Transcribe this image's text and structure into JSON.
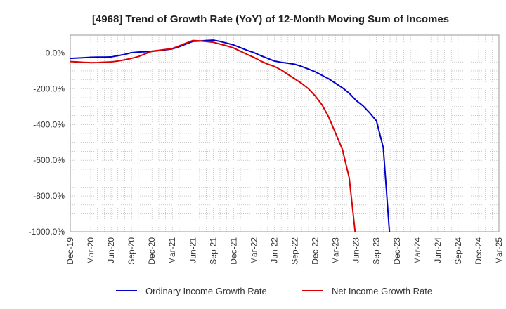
{
  "chart_data": {
    "type": "line",
    "title": "[4968]  Trend of Growth Rate (YoY) of 12-Month Moving Sum of Incomes",
    "xlabel": "",
    "ylabel": "",
    "ylim": [
      -1000,
      100
    ],
    "y_ticks": [
      {
        "value": 0,
        "label": "0.0%"
      },
      {
        "value": -200,
        "label": "-200.0%"
      },
      {
        "value": -400,
        "label": "-400.0%"
      },
      {
        "value": -600,
        "label": "-600.0%"
      },
      {
        "value": -800,
        "label": "-800.0%"
      },
      {
        "value": -1000,
        "label": "-1000.0%"
      }
    ],
    "x": [
      "Dec-19",
      "Jan-20",
      "Feb-20",
      "Mar-20",
      "Apr-20",
      "May-20",
      "Jun-20",
      "Jul-20",
      "Aug-20",
      "Sep-20",
      "Oct-20",
      "Nov-20",
      "Dec-20",
      "Jan-21",
      "Feb-21",
      "Mar-21",
      "Apr-21",
      "May-21",
      "Jun-21",
      "Jul-21",
      "Aug-21",
      "Sep-21",
      "Oct-21",
      "Nov-21",
      "Dec-21",
      "Jan-22",
      "Feb-22",
      "Mar-22",
      "Apr-22",
      "May-22",
      "Jun-22",
      "Jul-22",
      "Aug-22",
      "Sep-22",
      "Oct-22",
      "Nov-22",
      "Dec-22",
      "Jan-23",
      "Feb-23",
      "Mar-23",
      "Apr-23",
      "May-23",
      "Jun-23",
      "Jul-23",
      "Aug-23",
      "Sep-23",
      "Oct-23",
      "Nov-23",
      "Dec-23",
      "Jan-24",
      "Feb-24",
      "Mar-24",
      "Apr-24",
      "May-24",
      "Jun-24",
      "Jul-24",
      "Aug-24",
      "Sep-24",
      "Oct-24",
      "Nov-24",
      "Dec-24",
      "Jan-25",
      "Feb-25",
      "Mar-25"
    ],
    "x_tick_labels": [
      "Dec-19",
      "Mar-20",
      "Jun-20",
      "Sep-20",
      "Dec-20",
      "Mar-21",
      "Jun-21",
      "Sep-21",
      "Dec-21",
      "Mar-22",
      "Jun-22",
      "Sep-22",
      "Dec-22",
      "Mar-23",
      "Jun-23",
      "Sep-23",
      "Dec-23",
      "Mar-24",
      "Jun-24",
      "Sep-24",
      "Dec-24",
      "Mar-25"
    ],
    "grid": true,
    "legend_position": "bottom",
    "series": [
      {
        "name": "Ordinary Income Growth Rate",
        "color": "#0000cc",
        "values": [
          -30,
          -28,
          -26,
          -24,
          -23,
          -23,
          -22,
          -15,
          -8,
          2,
          5,
          7,
          9,
          13,
          18,
          23,
          35,
          50,
          65,
          67,
          70,
          72,
          65,
          55,
          45,
          30,
          15,
          2,
          -15,
          -30,
          -45,
          -52,
          -57,
          -63,
          -75,
          -90,
          -105,
          -125,
          -145,
          -170,
          -195,
          -225,
          -265,
          -295,
          -335,
          -380,
          -530,
          -1050,
          null,
          null,
          null,
          null,
          null,
          null,
          null,
          null,
          null,
          null,
          null,
          null,
          null,
          null,
          null,
          null
        ]
      },
      {
        "name": "Net Income Growth Rate",
        "color": "#dd0000",
        "values": [
          -48,
          -50,
          -52,
          -54,
          -53,
          -51,
          -50,
          -45,
          -38,
          -30,
          -20,
          -5,
          10,
          15,
          20,
          25,
          40,
          55,
          70,
          68,
          64,
          60,
          50,
          40,
          28,
          10,
          -8,
          -25,
          -45,
          -62,
          -75,
          -95,
          -120,
          -145,
          -170,
          -200,
          -240,
          -290,
          -360,
          -450,
          -540,
          -700,
          -1050,
          null,
          null,
          null,
          null,
          null,
          null,
          null,
          null,
          null,
          null,
          null,
          null,
          null,
          null,
          null,
          null,
          null,
          null,
          null,
          null,
          null
        ]
      }
    ]
  }
}
